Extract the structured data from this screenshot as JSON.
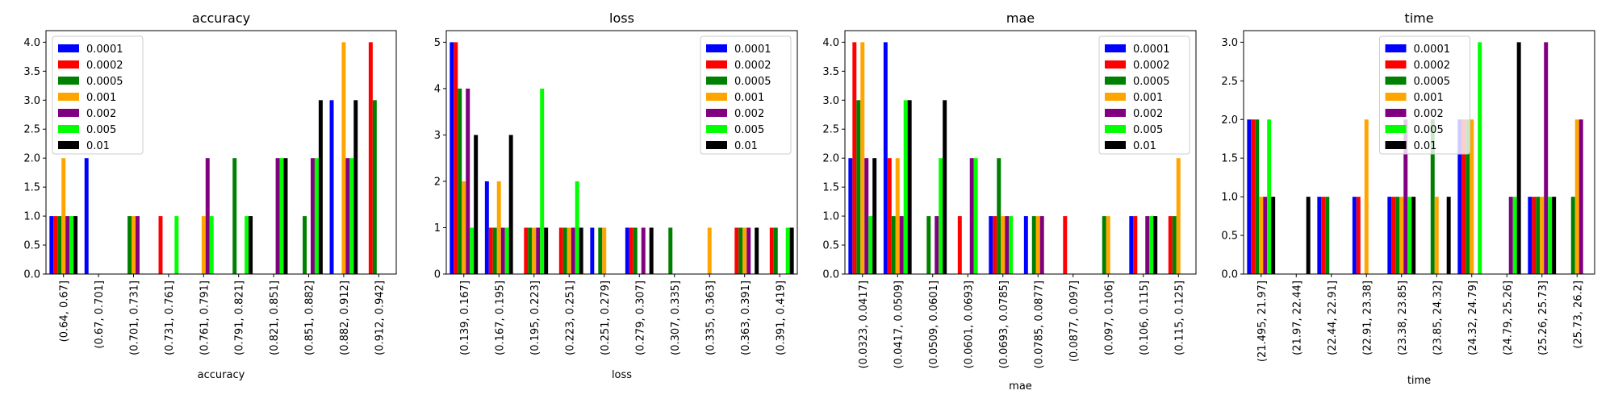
{
  "chart_data": [
    {
      "type": "bar",
      "title": "accuracy",
      "xlabel": "accuracy",
      "ylabel": "",
      "ylim": [
        0,
        4.2
      ],
      "yticks": [
        "0.0",
        "0.5",
        "1.0",
        "1.5",
        "2.0",
        "2.5",
        "3.0",
        "3.5",
        "4.0"
      ],
      "legend_position": "upper-left",
      "categories": [
        "(0.64, 0.67]",
        "(0.67, 0.701]",
        "(0.701, 0.731]",
        "(0.731, 0.761]",
        "(0.761, 0.791]",
        "(0.791, 0.821]",
        "(0.821, 0.851]",
        "(0.851, 0.882]",
        "(0.882, 0.912]",
        "(0.912, 0.942]"
      ],
      "series": [
        {
          "name": "0.0001",
          "color": "#0000ff",
          "values": [
            1,
            2,
            0,
            0,
            0,
            0,
            0,
            0,
            3,
            0
          ]
        },
        {
          "name": "0.0002",
          "color": "#ff0000",
          "values": [
            1,
            0,
            0,
            1,
            0,
            0,
            0,
            0,
            0,
            4
          ]
        },
        {
          "name": "0.0005",
          "color": "#008000",
          "values": [
            1,
            0,
            1,
            0,
            0,
            2,
            0,
            1,
            0,
            3
          ]
        },
        {
          "name": "0.001",
          "color": "#ffa500",
          "values": [
            2,
            0,
            1,
            0,
            1,
            0,
            0,
            0,
            4,
            0
          ]
        },
        {
          "name": "0.002",
          "color": "#800080",
          "values": [
            1,
            0,
            1,
            0,
            2,
            0,
            2,
            2,
            2,
            0
          ]
        },
        {
          "name": "0.005",
          "color": "#00ff00",
          "values": [
            1,
            0,
            0,
            1,
            1,
            1,
            2,
            2,
            2,
            0
          ]
        },
        {
          "name": "0.01",
          "color": "#000000",
          "values": [
            1,
            0,
            0,
            0,
            0,
            1,
            2,
            3,
            3,
            0
          ]
        }
      ]
    },
    {
      "type": "bar",
      "title": "loss",
      "xlabel": "loss",
      "ylabel": "",
      "ylim": [
        0,
        5.25
      ],
      "yticks": [
        "0",
        "1",
        "2",
        "3",
        "4",
        "5"
      ],
      "legend_position": "upper-right",
      "categories": [
        "(0.139, 0.167]",
        "(0.167, 0.195]",
        "(0.195, 0.223]",
        "(0.223, 0.251]",
        "(0.251, 0.279]",
        "(0.279, 0.307]",
        "(0.307, 0.335]",
        "(0.335, 0.363]",
        "(0.363, 0.391]",
        "(0.391, 0.419]"
      ],
      "series": [
        {
          "name": "0.0001",
          "color": "#0000ff",
          "values": [
            5,
            2,
            0,
            0,
            1,
            1,
            0,
            0,
            0,
            0
          ]
        },
        {
          "name": "0.0002",
          "color": "#ff0000",
          "values": [
            5,
            1,
            1,
            1,
            0,
            1,
            0,
            0,
            1,
            1
          ]
        },
        {
          "name": "0.0005",
          "color": "#008000",
          "values": [
            4,
            1,
            1,
            1,
            1,
            1,
            1,
            0,
            1,
            1
          ]
        },
        {
          "name": "0.001",
          "color": "#ffa500",
          "values": [
            2,
            2,
            1,
            1,
            1,
            0,
            0,
            1,
            1,
            0
          ]
        },
        {
          "name": "0.002",
          "color": "#800080",
          "values": [
            4,
            1,
            1,
            1,
            0,
            1,
            0,
            0,
            1,
            0
          ]
        },
        {
          "name": "0.005",
          "color": "#00ff00",
          "values": [
            1,
            1,
            4,
            2,
            0,
            0,
            0,
            0,
            0,
            1
          ]
        },
        {
          "name": "0.01",
          "color": "#000000",
          "values": [
            3,
            3,
            1,
            1,
            0,
            1,
            0,
            0,
            1,
            1
          ]
        }
      ]
    },
    {
      "type": "bar",
      "title": "mae",
      "xlabel": "mae",
      "ylabel": "",
      "ylim": [
        0,
        4.2
      ],
      "yticks": [
        "0.0",
        "0.5",
        "1.0",
        "1.5",
        "2.0",
        "2.5",
        "3.0",
        "3.5",
        "4.0"
      ],
      "legend_position": "upper-right",
      "categories": [
        "(0.0323, 0.0417]",
        "(0.0417, 0.0509]",
        "(0.0509, 0.0601]",
        "(0.0601, 0.0693]",
        "(0.0693, 0.0785]",
        "(0.0785, 0.0877]",
        "(0.0877, 0.097]",
        "(0.097, 0.106]",
        "(0.106, 0.115]",
        "(0.115, 0.125]"
      ],
      "series": [
        {
          "name": "0.0001",
          "color": "#0000ff",
          "values": [
            2,
            4,
            0,
            0,
            1,
            1,
            0,
            0,
            1,
            0
          ]
        },
        {
          "name": "0.0002",
          "color": "#ff0000",
          "values": [
            4,
            2,
            0,
            1,
            1,
            0,
            1,
            0,
            1,
            1
          ]
        },
        {
          "name": "0.0005",
          "color": "#008000",
          "values": [
            3,
            1,
            1,
            0,
            2,
            1,
            0,
            1,
            0,
            1
          ]
        },
        {
          "name": "0.001",
          "color": "#ffa500",
          "values": [
            4,
            2,
            0,
            0,
            1,
            1,
            0,
            1,
            0,
            2
          ]
        },
        {
          "name": "0.002",
          "color": "#800080",
          "values": [
            2,
            1,
            1,
            2,
            1,
            1,
            0,
            0,
            1,
            0
          ]
        },
        {
          "name": "0.005",
          "color": "#00ff00",
          "values": [
            1,
            3,
            2,
            2,
            1,
            0,
            0,
            0,
            1,
            0
          ]
        },
        {
          "name": "0.01",
          "color": "#000000",
          "values": [
            2,
            3,
            3,
            0,
            0,
            0,
            0,
            0,
            1,
            0
          ]
        }
      ]
    },
    {
      "type": "bar",
      "title": "time",
      "xlabel": "time",
      "ylabel": "",
      "ylim": [
        0,
        3.15
      ],
      "yticks": [
        "0.0",
        "0.5",
        "1.0",
        "1.5",
        "2.0",
        "2.5",
        "3.0"
      ],
      "legend_position": "upper-center",
      "categories": [
        "(21.495, 21.97]",
        "(21.97, 22.44]",
        "(22.44, 22.91]",
        "(22.91, 23.38]",
        "(23.38, 23.85]",
        "(23.85, 24.32]",
        "(24.32, 24.79]",
        "(24.79, 25.26]",
        "(25.26, 25.73]",
        "(25.73, 26.2]"
      ],
      "series": [
        {
          "name": "0.0001",
          "color": "#0000ff",
          "values": [
            2,
            0,
            1,
            1,
            1,
            0,
            2,
            0,
            1,
            0
          ]
        },
        {
          "name": "0.0002",
          "color": "#ff0000",
          "values": [
            2,
            0,
            1,
            1,
            1,
            0,
            2,
            0,
            1,
            0
          ]
        },
        {
          "name": "0.0005",
          "color": "#008000",
          "values": [
            2,
            0,
            1,
            0,
            1,
            2,
            2,
            0,
            1,
            1
          ]
        },
        {
          "name": "0.001",
          "color": "#ffa500",
          "values": [
            1,
            0,
            0,
            2,
            1,
            1,
            2,
            0,
            1,
            2
          ]
        },
        {
          "name": "0.002",
          "color": "#800080",
          "values": [
            1,
            0,
            0,
            0,
            2,
            0,
            0,
            1,
            3,
            2
          ]
        },
        {
          "name": "0.005",
          "color": "#00ff00",
          "values": [
            2,
            0,
            0,
            0,
            1,
            0,
            3,
            1,
            1,
            0
          ]
        },
        {
          "name": "0.01",
          "color": "#000000",
          "values": [
            1,
            1,
            0,
            0,
            1,
            1,
            0,
            3,
            1,
            0
          ]
        }
      ]
    }
  ]
}
